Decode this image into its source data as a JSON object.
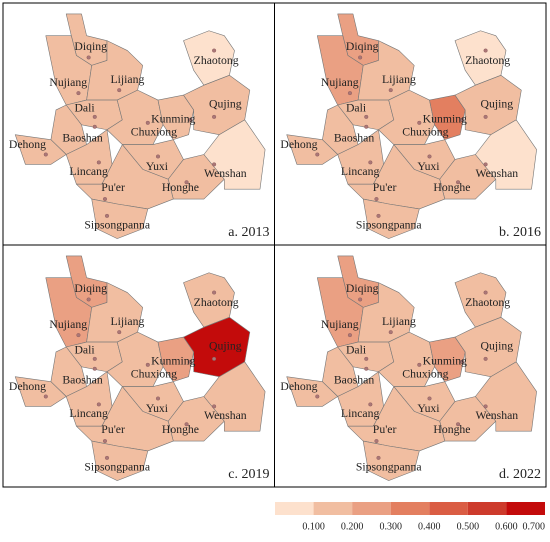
{
  "panels": [
    {
      "caption": "a. 2013",
      "regions": [
        {
          "label": "Diqing",
          "value": 0.18
        },
        {
          "label": "Nujiang",
          "value": 0.18
        },
        {
          "label": "Lijiang",
          "value": 0.18
        },
        {
          "label": "Dali",
          "value": 0.18
        },
        {
          "label": "Baoshan",
          "value": 0.18
        },
        {
          "label": "Dehong",
          "value": 0.18
        },
        {
          "label": "Lincang",
          "value": 0.18
        },
        {
          "label": "Chuxiong",
          "value": 0.18
        },
        {
          "label": "Kunming",
          "value": 0.18
        },
        {
          "label": "Zhaotong",
          "value": 0.08
        },
        {
          "label": "Qujing",
          "value": 0.18
        },
        {
          "label": "Yuxi",
          "value": 0.18
        },
        {
          "label": "Honghe",
          "value": 0.18
        },
        {
          "label": "Wenshan",
          "value": 0.08
        },
        {
          "label": "Pu'er",
          "value": 0.18
        },
        {
          "label": "Sipsongpanna",
          "value": 0.18
        }
      ]
    },
    {
      "caption": "b. 2016",
      "regions": [
        {
          "label": "Diqing",
          "value": 0.28
        },
        {
          "label": "Nujiang",
          "value": 0.28
        },
        {
          "label": "Lijiang",
          "value": 0.18
        },
        {
          "label": "Dali",
          "value": 0.18
        },
        {
          "label": "Baoshan",
          "value": 0.18
        },
        {
          "label": "Dehong",
          "value": 0.18
        },
        {
          "label": "Lincang",
          "value": 0.18
        },
        {
          "label": "Chuxiong",
          "value": 0.18
        },
        {
          "label": "Kunming",
          "value": 0.32
        },
        {
          "label": "Zhaotong",
          "value": 0.08
        },
        {
          "label": "Qujing",
          "value": 0.18
        },
        {
          "label": "Yuxi",
          "value": 0.18
        },
        {
          "label": "Honghe",
          "value": 0.18
        },
        {
          "label": "Wenshan",
          "value": 0.08
        },
        {
          "label": "Pu'er",
          "value": 0.18
        },
        {
          "label": "Sipsongpanna",
          "value": 0.18
        }
      ]
    },
    {
      "caption": "c. 2019",
      "regions": [
        {
          "label": "Diqing",
          "value": 0.28
        },
        {
          "label": "Nujiang",
          "value": 0.22
        },
        {
          "label": "Lijiang",
          "value": 0.18
        },
        {
          "label": "Dali",
          "value": 0.18
        },
        {
          "label": "Baoshan",
          "value": 0.18
        },
        {
          "label": "Dehong",
          "value": 0.18
        },
        {
          "label": "Lincang",
          "value": 0.18
        },
        {
          "label": "Chuxiong",
          "value": 0.18
        },
        {
          "label": "Kunming",
          "value": 0.28
        },
        {
          "label": "Zhaotong",
          "value": 0.18
        },
        {
          "label": "Qujing",
          "value": 0.68
        },
        {
          "label": "Yuxi",
          "value": 0.18
        },
        {
          "label": "Honghe",
          "value": 0.18
        },
        {
          "label": "Wenshan",
          "value": 0.18
        },
        {
          "label": "Pu'er",
          "value": 0.18
        },
        {
          "label": "Sipsongpanna",
          "value": 0.18
        }
      ]
    },
    {
      "caption": "d. 2022",
      "regions": [
        {
          "label": "Diqing",
          "value": 0.28
        },
        {
          "label": "Nujiang",
          "value": 0.28
        },
        {
          "label": "Lijiang",
          "value": 0.18
        },
        {
          "label": "Dali",
          "value": 0.18
        },
        {
          "label": "Baoshan",
          "value": 0.18
        },
        {
          "label": "Dehong",
          "value": 0.18
        },
        {
          "label": "Lincang",
          "value": 0.18
        },
        {
          "label": "Chuxiong",
          "value": 0.18
        },
        {
          "label": "Kunming",
          "value": 0.28
        },
        {
          "label": "Zhaotong",
          "value": 0.18
        },
        {
          "label": "Qujing",
          "value": 0.18
        },
        {
          "label": "Yuxi",
          "value": 0.18
        },
        {
          "label": "Honghe",
          "value": 0.18
        },
        {
          "label": "Wenshan",
          "value": 0.18
        },
        {
          "label": "Pu'er",
          "value": 0.18
        },
        {
          "label": "Sipsongpanna",
          "value": 0.18
        }
      ]
    }
  ],
  "legend": {
    "colors": [
      "#fde1cd",
      "#f1bea1",
      "#eaa083",
      "#e37f60",
      "#da5d44",
      "#cd3b2c",
      "#c30b0b"
    ],
    "ticks": [
      {
        "value": 0.1,
        "label": "0.100"
      },
      {
        "value": 0.2,
        "label": "0.200"
      },
      {
        "value": 0.3,
        "label": "0.300"
      },
      {
        "value": 0.4,
        "label": "0.400"
      },
      {
        "value": 0.5,
        "label": "0.500"
      },
      {
        "value": 0.6,
        "label": "0.600"
      },
      {
        "value": 0.7,
        "label": "0.700"
      }
    ]
  }
}
